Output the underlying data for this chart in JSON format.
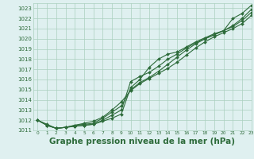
{
  "bg_color": "#dff0f0",
  "grid_color": "#aacfbf",
  "line_color": "#2d6b3a",
  "marker_color": "#2d6b3a",
  "xlabel": "Graphe pression niveau de la mer (hPa)",
  "xlabel_fontsize": 7.5,
  "ylim": [
    1011.0,
    1023.5
  ],
  "xlim": [
    -0.5,
    23
  ],
  "yticks": [
    1011,
    1012,
    1013,
    1014,
    1015,
    1016,
    1017,
    1018,
    1019,
    1020,
    1021,
    1022,
    1023
  ],
  "xticks": [
    0,
    1,
    2,
    3,
    4,
    5,
    6,
    7,
    8,
    9,
    10,
    11,
    12,
    13,
    14,
    15,
    16,
    17,
    18,
    19,
    20,
    21,
    22,
    23
  ],
  "series": [
    [
      1012.0,
      1011.6,
      1011.2,
      1011.3,
      1011.4,
      1011.5,
      1011.6,
      1011.9,
      1012.2,
      1012.6,
      1015.2,
      1016.0,
      1017.2,
      1018.0,
      1018.5,
      1018.7,
      1019.2,
      1019.7,
      1020.1,
      1020.5,
      1020.8,
      1022.0,
      1022.5,
      1023.3
    ],
    [
      1012.0,
      1011.5,
      1011.2,
      1011.3,
      1011.4,
      1011.5,
      1011.6,
      1012.0,
      1012.5,
      1013.0,
      1015.8,
      1016.3,
      1016.7,
      1017.3,
      1018.0,
      1018.5,
      1019.1,
      1019.6,
      1020.0,
      1020.4,
      1020.8,
      1021.3,
      1022.0,
      1022.9
    ],
    [
      1012.0,
      1011.5,
      1011.2,
      1011.3,
      1011.5,
      1011.6,
      1011.7,
      1012.2,
      1012.8,
      1013.4,
      1015.0,
      1015.7,
      1016.2,
      1016.8,
      1017.5,
      1018.2,
      1018.9,
      1019.5,
      1020.0,
      1020.4,
      1020.8,
      1021.2,
      1021.8,
      1022.6
    ],
    [
      1012.0,
      1011.5,
      1011.2,
      1011.3,
      1011.5,
      1011.7,
      1011.9,
      1012.3,
      1013.0,
      1013.8,
      1014.9,
      1015.6,
      1016.1,
      1016.6,
      1017.1,
      1017.7,
      1018.4,
      1019.1,
      1019.7,
      1020.2,
      1020.6,
      1021.0,
      1021.5,
      1022.3
    ]
  ]
}
